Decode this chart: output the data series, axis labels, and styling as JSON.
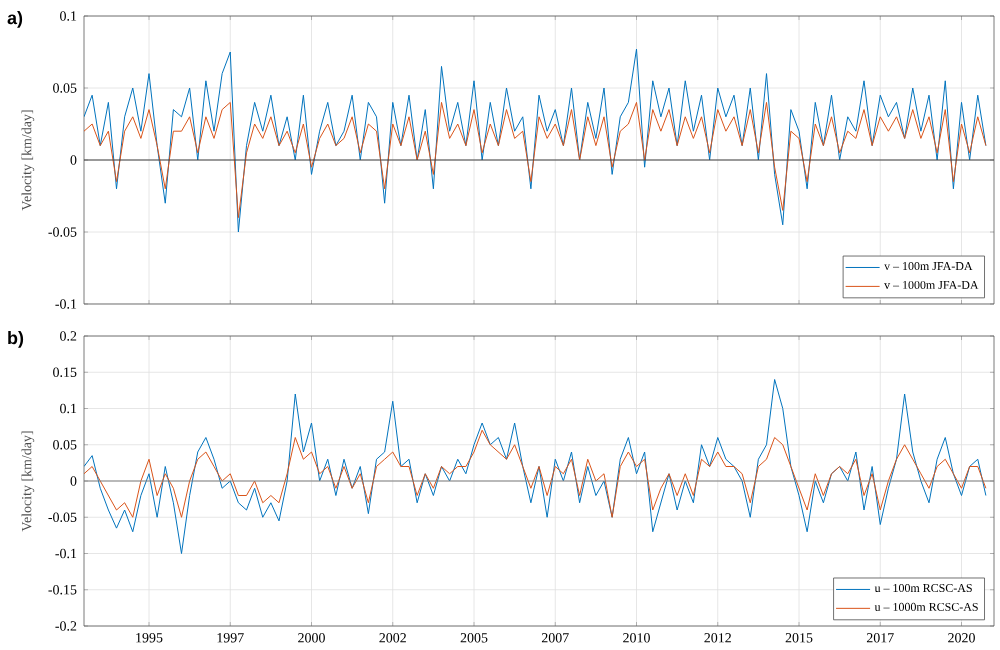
{
  "chart_data": [
    {
      "type": "line",
      "title": "a)",
      "ylabel": "Velocity [km/day]",
      "x": [
        1993,
        1993.25,
        1993.5,
        1993.75,
        1994,
        1994.25,
        1994.5,
        1994.75,
        1995,
        1995.25,
        1995.5,
        1995.75,
        1996,
        1996.25,
        1996.5,
        1996.75,
        1997,
        1997.25,
        1997.5,
        1997.75,
        1998,
        1998.25,
        1998.5,
        1998.75,
        1999,
        1999.25,
        1999.5,
        1999.75,
        2000,
        2000.25,
        2000.5,
        2000.75,
        2001,
        2001.25,
        2001.5,
        2001.75,
        2002,
        2002.25,
        2002.5,
        2002.75,
        2003,
        2003.25,
        2003.5,
        2003.75,
        2004,
        2004.25,
        2004.5,
        2004.75,
        2005,
        2005.25,
        2005.5,
        2005.75,
        2006,
        2006.25,
        2006.5,
        2006.75,
        2007,
        2007.25,
        2007.5,
        2007.75,
        2008,
        2008.25,
        2008.5,
        2008.75,
        2009,
        2009.25,
        2009.5,
        2009.75,
        2010,
        2010.25,
        2010.5,
        2010.75,
        2011,
        2011.25,
        2011.5,
        2011.75,
        2012,
        2012.25,
        2012.5,
        2012.75,
        2013,
        2013.25,
        2013.5,
        2013.75,
        2014,
        2014.25,
        2014.5,
        2014.75,
        2015,
        2015.25,
        2015.5,
        2015.75,
        2016,
        2016.25,
        2016.5,
        2016.75,
        2017,
        2017.25,
        2017.5,
        2017.75,
        2018,
        2018.25,
        2018.5,
        2018.75,
        2019,
        2019.25,
        2019.5,
        2019.75,
        2020,
        2020.25,
        2020.5,
        2020.75
      ],
      "series": [
        {
          "name": "v – 100m JFA-DA",
          "color": "#0072bd",
          "values": [
            0.03,
            0.045,
            0.01,
            0.04,
            -0.02,
            0.03,
            0.05,
            0.02,
            0.06,
            0.01,
            -0.03,
            0.035,
            0.03,
            0.05,
            0.0,
            0.055,
            0.02,
            0.06,
            0.075,
            -0.05,
            0.01,
            0.04,
            0.02,
            0.045,
            0.01,
            0.03,
            0.0,
            0.045,
            -0.01,
            0.02,
            0.04,
            0.01,
            0.02,
            0.045,
            0.0,
            0.04,
            0.03,
            -0.03,
            0.04,
            0.01,
            0.045,
            0.0,
            0.035,
            -0.02,
            0.065,
            0.02,
            0.04,
            0.01,
            0.055,
            0.0,
            0.04,
            0.01,
            0.05,
            0.02,
            0.03,
            -0.02,
            0.045,
            0.02,
            0.035,
            0.01,
            0.05,
            0.0,
            0.04,
            0.015,
            0.05,
            -0.01,
            0.03,
            0.04,
            0.077,
            -0.005,
            0.055,
            0.03,
            0.05,
            0.01,
            0.055,
            0.02,
            0.045,
            0.0,
            0.05,
            0.03,
            0.045,
            0.01,
            0.05,
            0.0,
            0.06,
            -0.01,
            -0.045,
            0.035,
            0.02,
            -0.02,
            0.04,
            0.01,
            0.045,
            0.0,
            0.03,
            0.02,
            0.055,
            0.01,
            0.045,
            0.03,
            0.04,
            0.015,
            0.05,
            0.02,
            0.045,
            0.0,
            0.055,
            -0.02,
            0.04,
            0.0,
            0.045,
            0.01
          ]
        },
        {
          "name": "v – 1000m JFA-DA",
          "color": "#d95319",
          "values": [
            0.02,
            0.025,
            0.01,
            0.02,
            -0.015,
            0.02,
            0.03,
            0.015,
            0.035,
            0.01,
            -0.02,
            0.02,
            0.02,
            0.03,
            0.005,
            0.03,
            0.015,
            0.035,
            0.04,
            -0.04,
            0.005,
            0.025,
            0.015,
            0.03,
            0.01,
            0.02,
            0.005,
            0.025,
            -0.005,
            0.015,
            0.025,
            0.01,
            0.015,
            0.03,
            0.005,
            0.025,
            0.02,
            -0.02,
            0.025,
            0.01,
            0.03,
            0.0,
            0.02,
            -0.01,
            0.04,
            0.015,
            0.025,
            0.01,
            0.035,
            0.005,
            0.025,
            0.01,
            0.035,
            0.015,
            0.02,
            -0.015,
            0.03,
            0.015,
            0.025,
            0.01,
            0.035,
            0.0,
            0.03,
            0.01,
            0.03,
            -0.005,
            0.02,
            0.025,
            0.04,
            0.0,
            0.035,
            0.02,
            0.035,
            0.01,
            0.03,
            0.015,
            0.03,
            0.005,
            0.035,
            0.02,
            0.03,
            0.01,
            0.035,
            0.005,
            0.04,
            -0.005,
            -0.035,
            0.02,
            0.015,
            -0.015,
            0.025,
            0.01,
            0.03,
            0.005,
            0.02,
            0.015,
            0.035,
            0.01,
            0.03,
            0.02,
            0.03,
            0.015,
            0.035,
            0.015,
            0.03,
            0.005,
            0.035,
            -0.015,
            0.025,
            0.005,
            0.03,
            0.01
          ]
        }
      ],
      "xlim": [
        1993,
        2021
      ],
      "xticks": [
        {
          "value": 1995,
          "label": null
        },
        {
          "value": 1997.5,
          "label": null
        },
        {
          "value": 2000,
          "label": null
        },
        {
          "value": 2002.5,
          "label": null
        },
        {
          "value": 2005,
          "label": null
        },
        {
          "value": 2007.5,
          "label": null
        },
        {
          "value": 2010,
          "label": null
        },
        {
          "value": 2012.5,
          "label": null
        },
        {
          "value": 2015,
          "label": null
        },
        {
          "value": 2017.5,
          "label": null
        },
        {
          "value": 2020,
          "label": null
        }
      ],
      "ylim": [
        -0.1,
        0.1
      ],
      "yticks": [
        -0.1,
        -0.05,
        0,
        0.05,
        0.1
      ],
      "tick_labels": "y",
      "grid": true,
      "legend": "bottom right",
      "ref_lines": [
        {
          "axis": "y",
          "value": 0,
          "color": "#404040"
        }
      ]
    },
    {
      "type": "line",
      "title": "b)",
      "ylabel": "Velocity [km/day]",
      "x": [
        1993,
        1993.25,
        1993.5,
        1993.75,
        1994,
        1994.25,
        1994.5,
        1994.75,
        1995,
        1995.25,
        1995.5,
        1995.75,
        1996,
        1996.25,
        1996.5,
        1996.75,
        1997,
        1997.25,
        1997.5,
        1997.75,
        1998,
        1998.25,
        1998.5,
        1998.75,
        1999,
        1999.25,
        1999.5,
        1999.75,
        2000,
        2000.25,
        2000.5,
        2000.75,
        2001,
        2001.25,
        2001.5,
        2001.75,
        2002,
        2002.25,
        2002.5,
        2002.75,
        2003,
        2003.25,
        2003.5,
        2003.75,
        2004,
        2004.25,
        2004.5,
        2004.75,
        2005,
        2005.25,
        2005.5,
        2005.75,
        2006,
        2006.25,
        2006.5,
        2006.75,
        2007,
        2007.25,
        2007.5,
        2007.75,
        2008,
        2008.25,
        2008.5,
        2008.75,
        2009,
        2009.25,
        2009.5,
        2009.75,
        2010,
        2010.25,
        2010.5,
        2010.75,
        2011,
        2011.25,
        2011.5,
        2011.75,
        2012,
        2012.25,
        2012.5,
        2012.75,
        2013,
        2013.25,
        2013.5,
        2013.75,
        2014,
        2014.25,
        2014.5,
        2014.75,
        2015,
        2015.25,
        2015.5,
        2015.75,
        2016,
        2016.25,
        2016.5,
        2016.75,
        2017,
        2017.25,
        2017.5,
        2017.75,
        2018,
        2018.25,
        2018.5,
        2018.75,
        2019,
        2019.25,
        2019.5,
        2019.75,
        2020,
        2020.25,
        2020.5,
        2020.75
      ],
      "series": [
        {
          "name": "u – 100m RCSC-AS",
          "color": "#0072bd",
          "values": [
            0.02,
            0.035,
            -0.01,
            -0.04,
            -0.065,
            -0.04,
            -0.07,
            -0.02,
            0.01,
            -0.05,
            0.02,
            -0.03,
            -0.1,
            -0.02,
            0.04,
            0.06,
            0.03,
            -0.01,
            0.0,
            -0.03,
            -0.04,
            -0.01,
            -0.05,
            -0.03,
            -0.055,
            0.0,
            0.12,
            0.04,
            0.08,
            0.0,
            0.03,
            -0.02,
            0.03,
            -0.01,
            0.02,
            -0.045,
            0.03,
            0.04,
            0.11,
            0.02,
            0.03,
            -0.03,
            0.01,
            -0.02,
            0.02,
            0.0,
            0.03,
            0.01,
            0.05,
            0.08,
            0.05,
            0.06,
            0.03,
            0.08,
            0.02,
            -0.03,
            0.02,
            -0.05,
            0.03,
            0.0,
            0.04,
            -0.03,
            0.02,
            -0.02,
            0.0,
            -0.05,
            0.03,
            0.06,
            0.01,
            0.04,
            -0.07,
            -0.03,
            0.01,
            -0.04,
            0.0,
            -0.03,
            0.05,
            0.02,
            0.06,
            0.03,
            0.02,
            0.0,
            -0.05,
            0.03,
            0.05,
            0.14,
            0.1,
            0.02,
            -0.02,
            -0.07,
            0.0,
            -0.03,
            0.01,
            0.02,
            0.0,
            0.04,
            -0.04,
            0.02,
            -0.06,
            -0.01,
            0.03,
            0.12,
            0.04,
            0.0,
            -0.03,
            0.03,
            0.06,
            0.01,
            -0.02,
            0.02,
            0.03,
            -0.02
          ]
        },
        {
          "name": "u – 1000m RCSC-AS",
          "color": "#d95319",
          "values": [
            0.01,
            0.02,
            0.0,
            -0.02,
            -0.04,
            -0.03,
            -0.05,
            0.0,
            0.03,
            -0.02,
            0.01,
            -0.01,
            -0.05,
            0.0,
            0.03,
            0.04,
            0.02,
            0.0,
            0.01,
            -0.02,
            -0.02,
            0.0,
            -0.03,
            -0.02,
            -0.03,
            0.01,
            0.06,
            0.03,
            0.04,
            0.01,
            0.02,
            -0.01,
            0.02,
            -0.01,
            0.01,
            -0.03,
            0.02,
            0.03,
            0.04,
            0.02,
            0.02,
            -0.02,
            0.01,
            -0.01,
            0.02,
            0.01,
            0.02,
            0.02,
            0.04,
            0.07,
            0.05,
            0.04,
            0.03,
            0.05,
            0.02,
            -0.01,
            0.02,
            -0.02,
            0.02,
            0.01,
            0.03,
            -0.02,
            0.03,
            0.0,
            0.01,
            -0.05,
            0.02,
            0.04,
            0.02,
            0.03,
            -0.04,
            -0.01,
            0.01,
            -0.02,
            0.01,
            -0.02,
            0.03,
            0.02,
            0.04,
            0.02,
            0.02,
            0.01,
            -0.03,
            0.02,
            0.03,
            0.06,
            0.05,
            0.02,
            -0.01,
            -0.04,
            0.01,
            -0.02,
            0.01,
            0.02,
            0.01,
            0.03,
            -0.02,
            0.01,
            -0.04,
            0.0,
            0.03,
            0.05,
            0.03,
            0.01,
            -0.01,
            0.02,
            0.03,
            0.01,
            -0.01,
            0.02,
            0.02,
            -0.01
          ]
        }
      ],
      "xlim": [
        1993,
        2021
      ],
      "xticks": [
        1995,
        {
          "value": 1997.5,
          "label": "1997"
        },
        {
          "value": 2000,
          "label": "2000"
        },
        {
          "value": 2002.5,
          "label": "2002"
        },
        {
          "value": 2005,
          "label": "2005"
        },
        {
          "value": 2007.5,
          "label": "2007"
        },
        {
          "value": 2010,
          "label": "2010"
        },
        {
          "value": 2012.5,
          "label": "2012"
        },
        {
          "value": 2015,
          "label": "2015"
        },
        {
          "value": 2017.5,
          "label": "2017"
        },
        {
          "value": 2020,
          "label": "2020"
        }
      ],
      "ylim": [
        -0.2,
        0.2
      ],
      "yticks": [
        -0.2,
        -0.15,
        -0.1,
        -0.05,
        0,
        0.05,
        0.1,
        0.15,
        0.2
      ],
      "grid": true,
      "legend": "bottom right",
      "ref_lines": [
        {
          "axis": "y",
          "value": 0,
          "color": "#808080"
        }
      ]
    }
  ]
}
